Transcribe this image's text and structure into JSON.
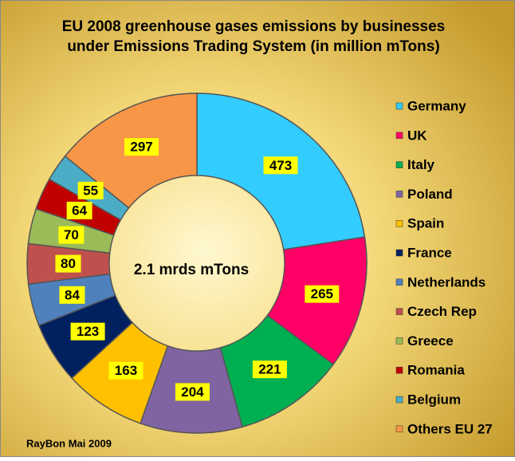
{
  "chart_data": {
    "type": "donut",
    "title": [
      "EU 2008 greenhouse gases emissions by businesses",
      "under Emissions Trading System (in million mTons)"
    ],
    "center_label": "2.1 mrds mTons",
    "categories": [
      "Germany",
      "UK",
      "Italy",
      "Poland",
      "Spain",
      "France",
      "Netherlands",
      "Czech Rep",
      "Greece",
      "Romania",
      "Belgium",
      "Others EU 27"
    ],
    "values": [
      473,
      265,
      221,
      204,
      163,
      123,
      84,
      80,
      70,
      64,
      55,
      297
    ],
    "colors": [
      "#33ccff",
      "#ff0066",
      "#00b050",
      "#8064a2",
      "#ffc000",
      "#002060",
      "#4f81bd",
      "#c0504d",
      "#9bbb59",
      "#c00000",
      "#4bacc6",
      "#f79646"
    ],
    "legend": "right",
    "source": "RayBon Mai 2009"
  }
}
